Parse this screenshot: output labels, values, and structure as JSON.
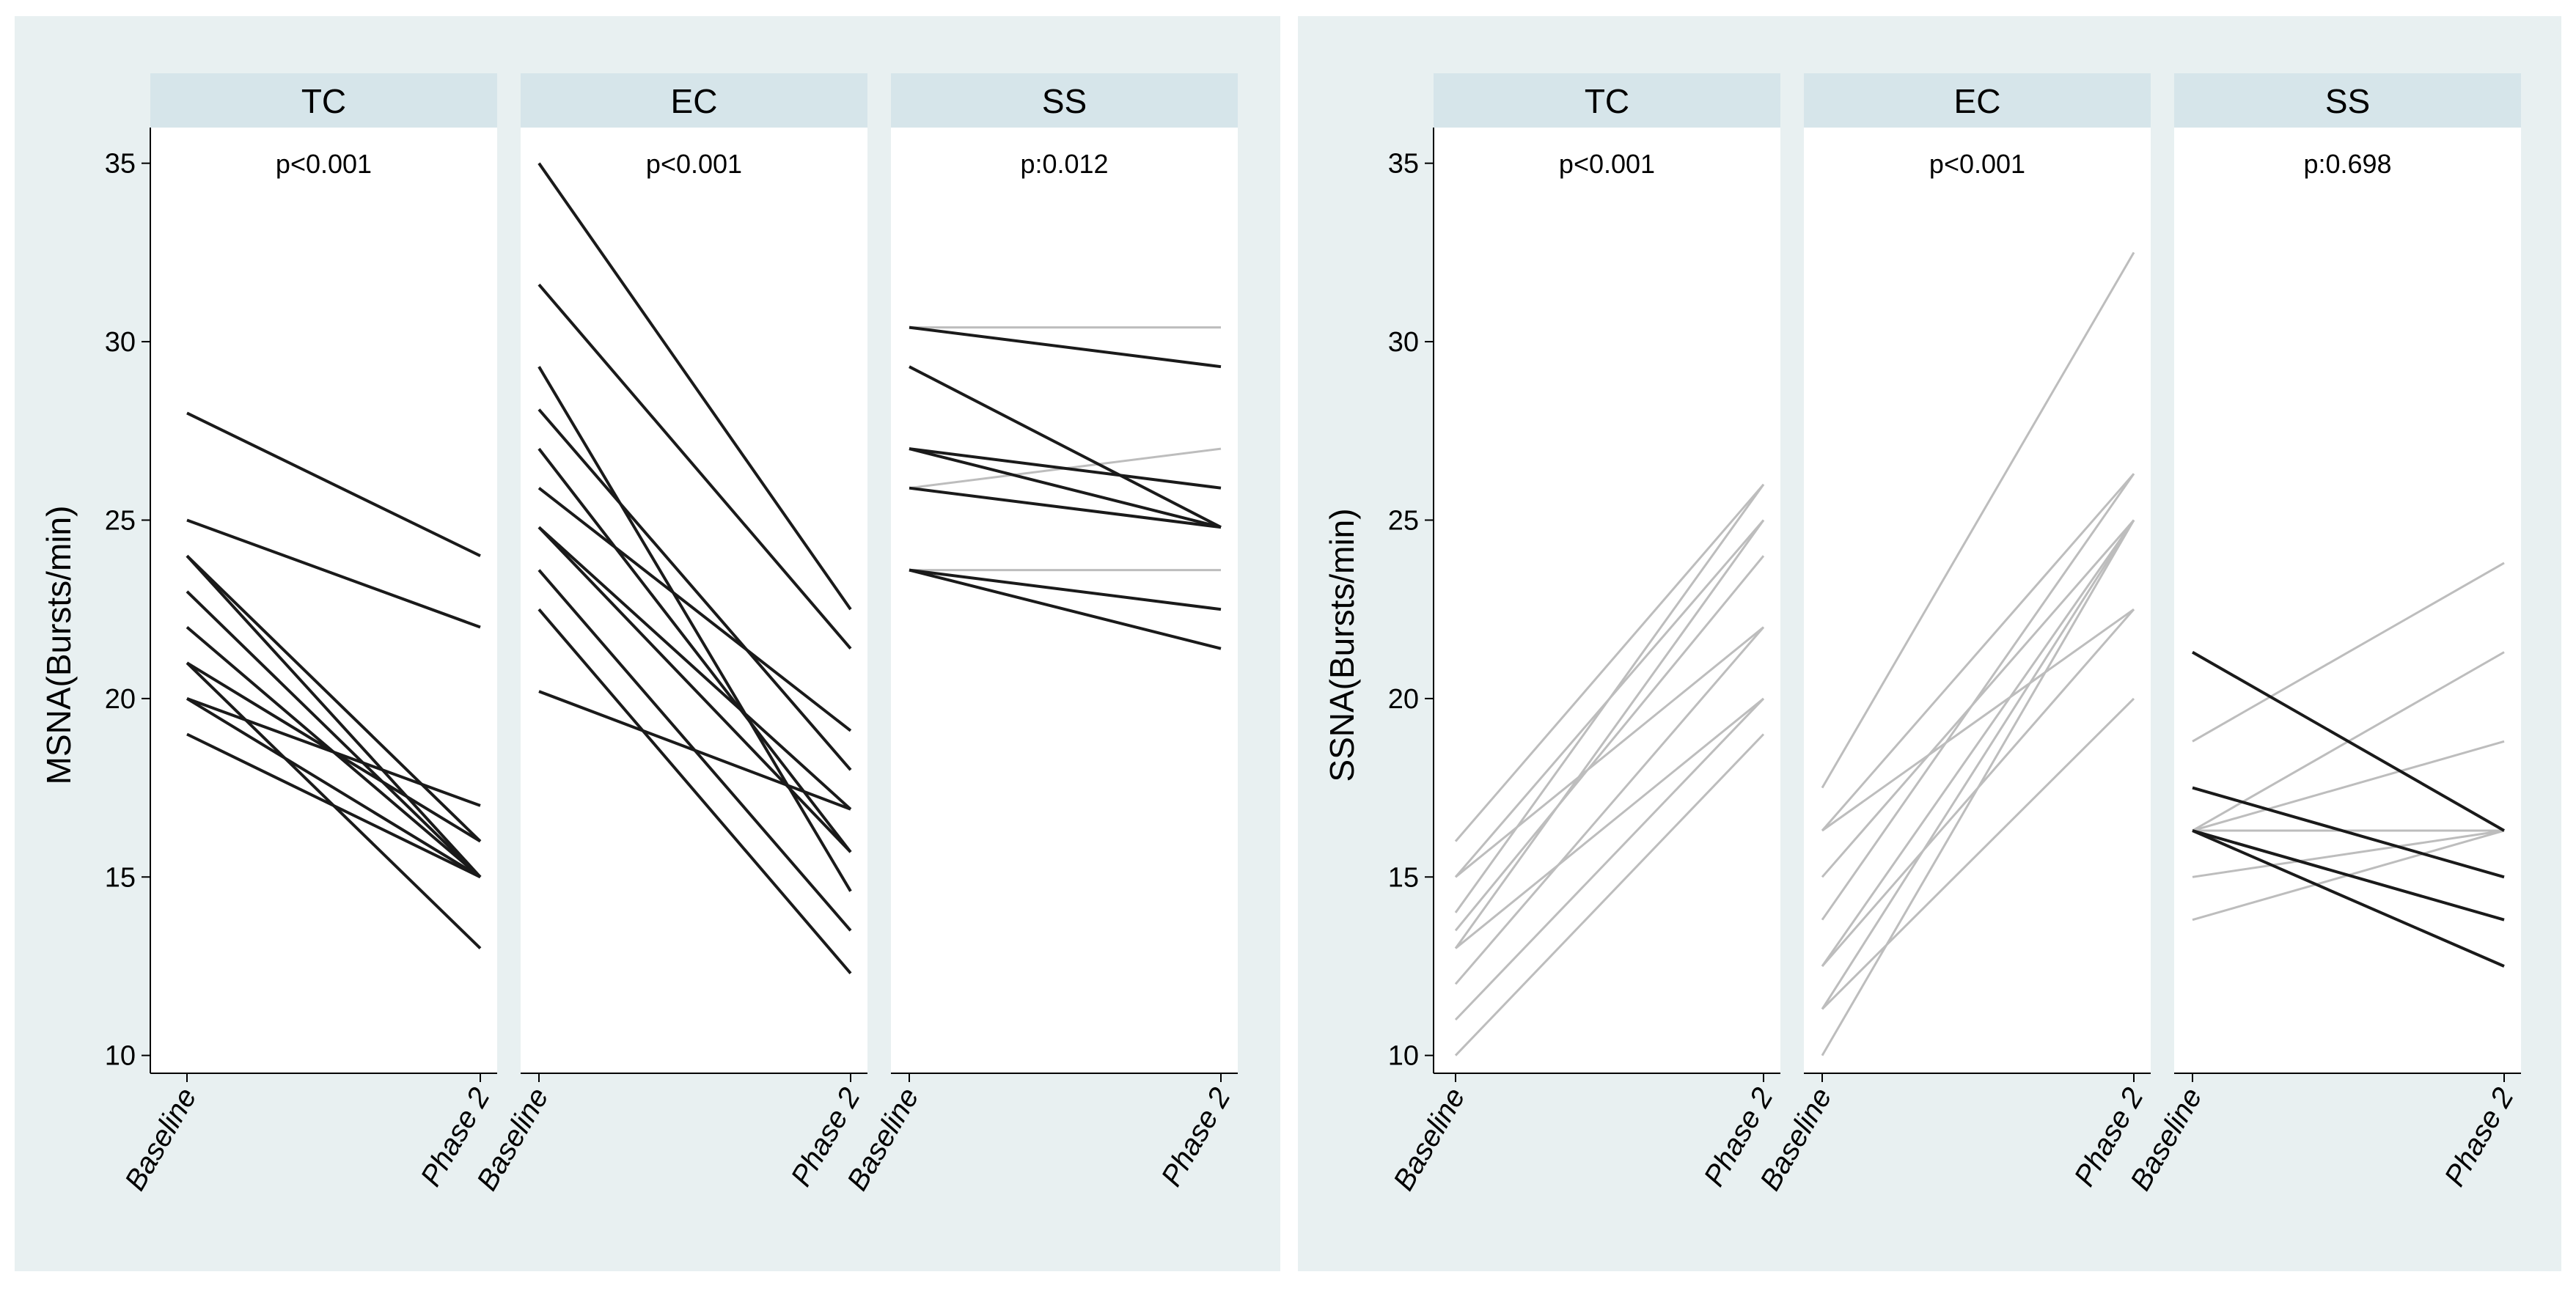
{
  "chart_data": [
    {
      "type": "line",
      "ylabel": "MSNA(Bursts/min)",
      "ylim": [
        9.5,
        36
      ],
      "yticks": [
        10,
        15,
        20,
        25,
        30,
        35
      ],
      "categories": [
        "Baseline",
        "Phase 2"
      ],
      "panels": [
        {
          "title": "TC",
          "pvalue": "p<0.001",
          "series": [
            {
              "values": [
                28,
                24
              ],
              "shade": "dark"
            },
            {
              "values": [
                25,
                22
              ],
              "shade": "dark"
            },
            {
              "values": [
                24,
                16
              ],
              "shade": "dark"
            },
            {
              "values": [
                24,
                15
              ],
              "shade": "dark"
            },
            {
              "values": [
                23,
                15
              ],
              "shade": "dark"
            },
            {
              "values": [
                22,
                15
              ],
              "shade": "dark"
            },
            {
              "values": [
                21,
                16
              ],
              "shade": "dark"
            },
            {
              "values": [
                21,
                13
              ],
              "shade": "dark"
            },
            {
              "values": [
                20,
                17
              ],
              "shade": "dark"
            },
            {
              "values": [
                20,
                15
              ],
              "shade": "dark"
            },
            {
              "values": [
                19,
                15
              ],
              "shade": "dark"
            }
          ]
        },
        {
          "title": "EC",
          "pvalue": "p<0.001",
          "series": [
            {
              "values": [
                35,
                22.5
              ],
              "shade": "dark"
            },
            {
              "values": [
                31.6,
                21.4
              ],
              "shade": "dark"
            },
            {
              "values": [
                29.3,
                14.6
              ],
              "shade": "dark"
            },
            {
              "values": [
                28.1,
                18
              ],
              "shade": "dark"
            },
            {
              "values": [
                27,
                15.7
              ],
              "shade": "dark"
            },
            {
              "values": [
                25.9,
                19.1
              ],
              "shade": "dark"
            },
            {
              "values": [
                24.8,
                16.9
              ],
              "shade": "dark"
            },
            {
              "values": [
                24.8,
                15.7
              ],
              "shade": "dark"
            },
            {
              "values": [
                23.6,
                13.5
              ],
              "shade": "dark"
            },
            {
              "values": [
                22.5,
                12.3
              ],
              "shade": "dark"
            },
            {
              "values": [
                20.2,
                16.9
              ],
              "shade": "dark"
            }
          ]
        },
        {
          "title": "SS",
          "pvalue": "p:0.012",
          "series": [
            {
              "values": [
                30.4,
                30.4
              ],
              "shade": "light"
            },
            {
              "values": [
                25.9,
                27
              ],
              "shade": "light"
            },
            {
              "values": [
                23.6,
                23.6
              ],
              "shade": "light"
            },
            {
              "values": [
                30.4,
                29.3
              ],
              "shade": "dark"
            },
            {
              "values": [
                29.3,
                24.8
              ],
              "shade": "dark"
            },
            {
              "values": [
                27,
                25.9
              ],
              "shade": "dark"
            },
            {
              "values": [
                27,
                24.8
              ],
              "shade": "dark"
            },
            {
              "values": [
                25.9,
                24.8
              ],
              "shade": "dark"
            },
            {
              "values": [
                23.6,
                22.5
              ],
              "shade": "dark"
            },
            {
              "values": [
                23.6,
                21.4
              ],
              "shade": "dark"
            }
          ]
        }
      ]
    },
    {
      "type": "line",
      "ylabel": "SSNA(Bursts/min)",
      "ylim": [
        9.5,
        36
      ],
      "yticks": [
        10,
        15,
        20,
        25,
        30,
        35
      ],
      "categories": [
        "Baseline",
        "Phase 2"
      ],
      "panels": [
        {
          "title": "TC",
          "pvalue": "p<0.001",
          "series": [
            {
              "values": [
                16,
                26
              ],
              "shade": "light"
            },
            {
              "values": [
                15,
                25
              ],
              "shade": "light"
            },
            {
              "values": [
                15,
                22
              ],
              "shade": "light"
            },
            {
              "values": [
                14,
                26
              ],
              "shade": "light"
            },
            {
              "values": [
                13.5,
                24
              ],
              "shade": "light"
            },
            {
              "values": [
                13,
                25
              ],
              "shade": "light"
            },
            {
              "values": [
                13,
                20
              ],
              "shade": "light"
            },
            {
              "values": [
                12,
                22
              ],
              "shade": "light"
            },
            {
              "values": [
                11,
                20
              ],
              "shade": "light"
            },
            {
              "values": [
                10,
                19
              ],
              "shade": "light"
            }
          ]
        },
        {
          "title": "EC",
          "pvalue": "p<0.001",
          "series": [
            {
              "values": [
                17.5,
                32.5
              ],
              "shade": "light"
            },
            {
              "values": [
                16.3,
                26.3
              ],
              "shade": "light"
            },
            {
              "values": [
                16.3,
                22.5
              ],
              "shade": "light"
            },
            {
              "values": [
                15,
                25
              ],
              "shade": "light"
            },
            {
              "values": [
                13.8,
                26.3
              ],
              "shade": "light"
            },
            {
              "values": [
                12.5,
                25
              ],
              "shade": "light"
            },
            {
              "values": [
                12.5,
                22.5
              ],
              "shade": "light"
            },
            {
              "values": [
                11.3,
                25
              ],
              "shade": "light"
            },
            {
              "values": [
                11.3,
                20
              ],
              "shade": "light"
            },
            {
              "values": [
                10,
                25
              ],
              "shade": "light"
            }
          ]
        },
        {
          "title": "SS",
          "pvalue": "p:0.698",
          "series": [
            {
              "values": [
                18.8,
                23.8
              ],
              "shade": "light"
            },
            {
              "values": [
                16.3,
                21.3
              ],
              "shade": "light"
            },
            {
              "values": [
                16.3,
                18.8
              ],
              "shade": "light"
            },
            {
              "values": [
                16.3,
                16.3
              ],
              "shade": "light"
            },
            {
              "values": [
                15,
                16.3
              ],
              "shade": "light"
            },
            {
              "values": [
                13.8,
                16.3
              ],
              "shade": "light"
            },
            {
              "values": [
                21.3,
                16.3
              ],
              "shade": "dark"
            },
            {
              "values": [
                17.5,
                15
              ],
              "shade": "dark"
            },
            {
              "values": [
                16.3,
                13.8
              ],
              "shade": "dark"
            },
            {
              "values": [
                16.3,
                12.5
              ],
              "shade": "dark"
            }
          ]
        }
      ]
    }
  ]
}
